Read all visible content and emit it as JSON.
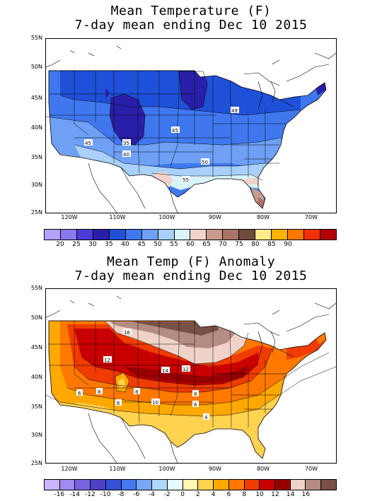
{
  "top_panel": {
    "title_line1": "Mean Temperature (F)",
    "title_line2": "7-day mean ending Dec 10 2015",
    "latitudes": [
      "55N",
      "50N",
      "45N",
      "40N",
      "35N",
      "30N",
      "25N"
    ],
    "longitudes": [
      "120W",
      "110W",
      "100W",
      "90W",
      "80W",
      "70W"
    ],
    "contour_labels": [
      "49",
      "45",
      "45",
      "35",
      "40",
      "50",
      "55"
    ],
    "legend_ticks": [
      "20",
      "25",
      "30",
      "35",
      "40",
      "45",
      "50",
      "55",
      "60",
      "65",
      "70",
      "75",
      "80",
      "85",
      "90"
    ],
    "legend_colors": [
      "#b4a0ff",
      "#8a78f0",
      "#4b3cd8",
      "#2a1fa8",
      "#1f50d8",
      "#3f78ee",
      "#6ea0f5",
      "#a8d0fa",
      "#d8f4fa",
      "#f0d4cc",
      "#c89a8c",
      "#a87468",
      "#6e4a3e",
      "#ffec8c",
      "#ffb200",
      "#ff7800",
      "#f03000",
      "#b40000"
    ]
  },
  "bottom_panel": {
    "title_line1": "Mean Temp (F) Anomaly",
    "title_line2": "7-day mean ending Dec 10 2015",
    "latitudes": [
      "55N",
      "50N",
      "45N",
      "40N",
      "35N",
      "30N",
      "25N"
    ],
    "longitudes": [
      "120W",
      "110W",
      "100W",
      "90W",
      "80W",
      "70W"
    ],
    "contour_labels": [
      "16",
      "12",
      "14",
      "12",
      "6",
      "8",
      "8",
      "6",
      "10",
      "8",
      "6",
      "4"
    ],
    "legend_ticks": [
      "-16",
      "-14",
      "-12",
      "-10",
      "-8",
      "-6",
      "-4",
      "-2",
      "0",
      "2",
      "4",
      "6",
      "8",
      "10",
      "12",
      "14",
      "16"
    ],
    "legend_colors": [
      "#c8b4ff",
      "#a08cf0",
      "#7864e0",
      "#5040c8",
      "#3250d8",
      "#4678ee",
      "#78a8f5",
      "#b0d8fa",
      "#e6faff",
      "#fff5b4",
      "#ffd250",
      "#ffa800",
      "#ff7800",
      "#f03c00",
      "#c80000",
      "#960000",
      "#f0d2c8",
      "#b48c82",
      "#7a5046"
    ]
  }
}
